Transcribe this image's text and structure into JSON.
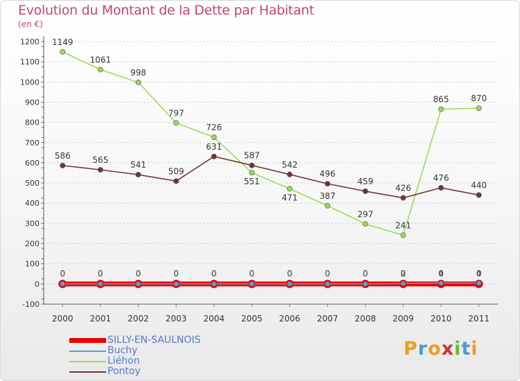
{
  "title": "Evolution du Montant de la Dette par Habitant",
  "subtitle": "(en €)",
  "logo_text": "Proxiti",
  "logo_colors": [
    "#e8a020",
    "#4a9ad8",
    "#e8a020",
    "#cc3333",
    "#66bb33",
    "#4a9ad8",
    "#e8a020"
  ],
  "chart_data": {
    "type": "line",
    "title": "Evolution du Montant de la Dette par Habitant",
    "subtitle": "(en €)",
    "xlabel": "",
    "ylabel": "",
    "categories": [
      "2000",
      "2001",
      "2002",
      "2003",
      "2004",
      "2005",
      "2006",
      "2007",
      "2008",
      "2009",
      "2010",
      "2011"
    ],
    "ylim": [
      -100,
      1200
    ],
    "yticks": [
      -100,
      0,
      100,
      200,
      300,
      400,
      500,
      600,
      700,
      800,
      900,
      1000,
      1100,
      1200
    ],
    "grid": "horizontal dashed",
    "legend_position": "bottom-left",
    "series": [
      {
        "name": "SILLY-EN-SAULNOIS",
        "color": "#ee0000",
        "values": [
          0,
          0,
          0,
          0,
          0,
          0,
          0,
          0,
          0,
          0,
          0,
          0
        ],
        "labels": [],
        "thick": true
      },
      {
        "name": "Buchy",
        "color": "#6699cc",
        "values": [
          0,
          0,
          0,
          0,
          0,
          0,
          0,
          0,
          0,
          2,
          4,
          4
        ],
        "labels": [
          "0",
          "0",
          "0",
          "0",
          "0",
          "0",
          "0",
          "0",
          "0",
          "2",
          "4",
          "4"
        ]
      },
      {
        "name": "Liéhon",
        "color": "#99dd55",
        "values": [
          1149,
          1061,
          998,
          797,
          726,
          551,
          471,
          387,
          297,
          241,
          865,
          870
        ],
        "labels": [
          "1149",
          "1061",
          "998",
          "797",
          "726",
          "551",
          "471",
          "387",
          "297",
          "241",
          "865",
          "870"
        ]
      },
      {
        "name": "Pontoy",
        "color": "#773333",
        "values": [
          586,
          565,
          541,
          509,
          631,
          587,
          542,
          496,
          459,
          426,
          476,
          440
        ],
        "labels": [
          "586",
          "565",
          "541",
          "509",
          "631",
          "587",
          "542",
          "496",
          "459",
          "426",
          "476",
          "440"
        ]
      }
    ],
    "zero_labels": [
      "0",
      "0",
      "0",
      "0",
      "0",
      "0",
      "0",
      "0",
      "0",
      "0",
      "0",
      "0"
    ]
  }
}
